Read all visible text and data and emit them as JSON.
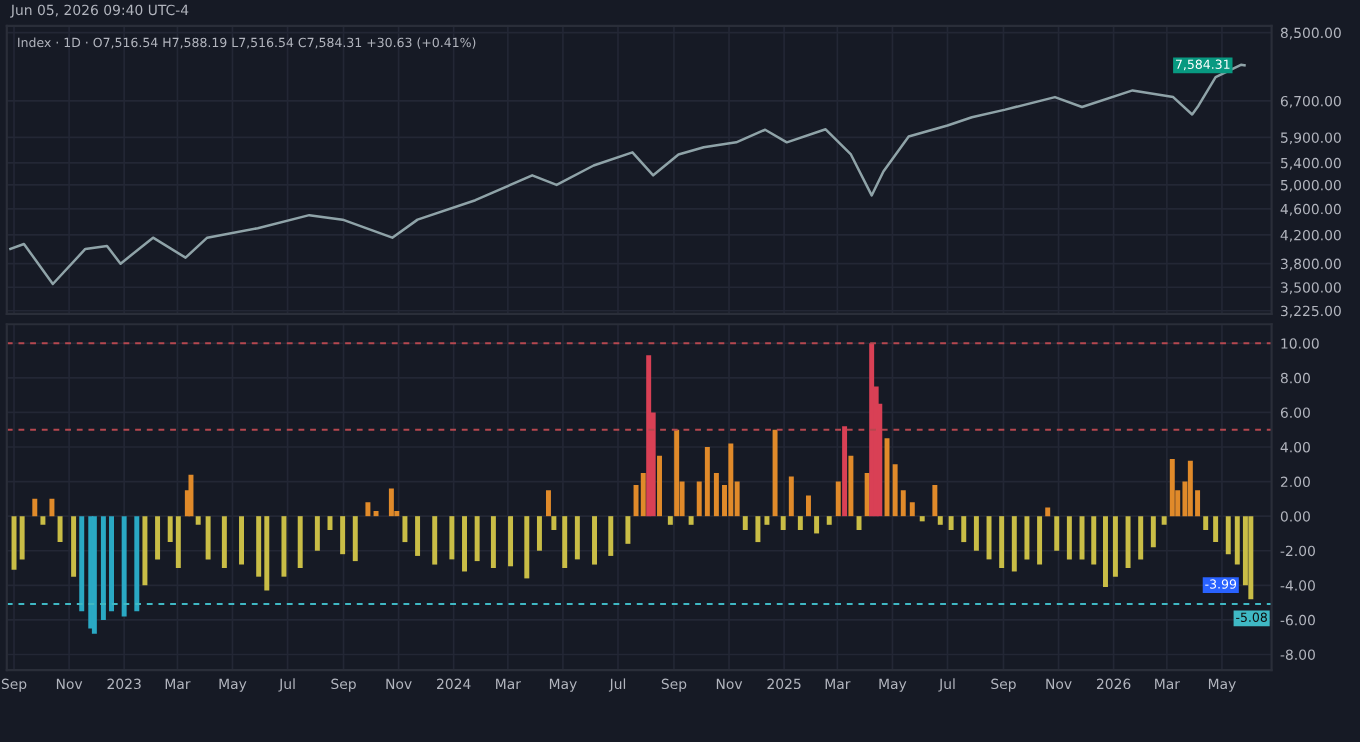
{
  "chart_data": [
    {
      "type": "line",
      "title": "Index · 1D · O7,516.54 H7,588.19 L7,516.54 C7,584.31 +30.63 (+0.41%)",
      "log": true,
      "grid": true,
      "tick_labels": "y",
      "annotations": [
        "Jun 05, 2026 09:40 UTC-4",
        {
          "text": "7,584.31",
          "x": "2026-05-26",
          "y": 7584.31
        }
      ],
      "xlim": [
        "2022-08-24",
        "2026-06-25"
      ],
      "ylim": [
        3190,
        8700
      ],
      "yticks": [
        {
          "value": 3225,
          "label": "3,225.00"
        },
        {
          "value": 3500,
          "label": "3,500.00"
        },
        {
          "value": 3800,
          "label": "3,800.00"
        },
        {
          "value": 4200,
          "label": "4,200.00"
        },
        {
          "value": 4600,
          "label": "4,600.00"
        },
        {
          "value": 5000,
          "label": "5,000.00"
        },
        {
          "value": 5400,
          "label": "5,400.00"
        },
        {
          "value": 5900,
          "label": "5,900.00"
        },
        {
          "value": 6700,
          "label": "6,700.00"
        },
        {
          "value": 8500,
          "label": "8,500.00"
        }
      ],
      "series": [
        {
          "color": "#8fa3a8",
          "x": [
            "2022-08-28",
            "2022-09-12",
            "2022-10-14",
            "2022-11-19",
            "2022-12-13",
            "2022-12-28",
            "2023-02-02",
            "2023-03-10",
            "2023-04-03",
            "2023-05-29",
            "2023-07-25",
            "2023-08-31",
            "2023-10-25",
            "2023-11-22",
            "2024-01-25",
            "2024-03-28",
            "2024-04-24",
            "2024-06-04",
            "2024-07-17",
            "2024-08-09",
            "2024-09-06",
            "2024-10-04",
            "2024-11-09",
            "2024-12-11",
            "2025-01-04",
            "2025-02-16",
            "2025-03-16",
            "2025-04-08",
            "2025-04-21",
            "2025-05-19",
            "2025-07-01",
            "2025-07-28",
            "2025-09-03",
            "2025-10-28",
            "2025-11-27",
            "2026-01-22",
            "2026-03-08",
            "2026-03-29",
            "2026-04-05",
            "2026-04-24",
            "2026-05-22",
            "2026-05-26"
          ],
          "values": [
            4000,
            4070,
            3540,
            4000,
            4040,
            3800,
            4160,
            3880,
            4160,
            4300,
            4500,
            4430,
            4160,
            4430,
            4740,
            5170,
            5000,
            5350,
            5600,
            5170,
            5560,
            5700,
            5800,
            6060,
            5800,
            6070,
            5560,
            4820,
            5240,
            5920,
            6150,
            6330,
            6500,
            6790,
            6560,
            6950,
            6790,
            6390,
            6590,
            7280,
            7600,
            7584.31
          ]
        }
      ]
    },
    {
      "type": "bar",
      "grid": true,
      "annotations": [
        {
          "text": "-3.99",
          "x": "2026-06-02",
          "y": -3.99
        }
      ],
      "xlim": [
        "2022-08-24",
        "2026-06-25"
      ],
      "xticks": [
        {
          "value": "2022-09-01",
          "label": "Sep"
        },
        {
          "value": "2022-11-01",
          "label": "Nov"
        },
        {
          "value": "2023-01-01",
          "label": "2023"
        },
        {
          "value": "2023-03-01",
          "label": "Mar"
        },
        {
          "value": "2023-05-01",
          "label": "May"
        },
        {
          "value": "2023-07-01",
          "label": "Jul"
        },
        {
          "value": "2023-09-01",
          "label": "Sep"
        },
        {
          "value": "2023-11-01",
          "label": "Nov"
        },
        {
          "value": "2024-01-01",
          "label": "2024"
        },
        {
          "value": "2024-03-01",
          "label": "Mar"
        },
        {
          "value": "2024-05-01",
          "label": "May"
        },
        {
          "value": "2024-07-01",
          "label": "Jul"
        },
        {
          "value": "2024-09-01",
          "label": "Sep"
        },
        {
          "value": "2024-11-01",
          "label": "Nov"
        },
        {
          "value": "2025-01-01",
          "label": "2025"
        },
        {
          "value": "2025-03-01",
          "label": "Mar"
        },
        {
          "value": "2025-05-01",
          "label": "May"
        },
        {
          "value": "2025-07-01",
          "label": "Jul"
        },
        {
          "value": "2025-09-01",
          "label": "Sep"
        },
        {
          "value": "2025-11-01",
          "label": "Nov"
        },
        {
          "value": "2026-01-01",
          "label": "2026"
        },
        {
          "value": "2026-03-01",
          "label": "Mar"
        },
        {
          "value": "2026-05-01",
          "label": "May"
        }
      ],
      "ylim": [
        -8.9,
        11.1
      ],
      "yticks": [
        {
          "value": 10,
          "label": "10.00"
        },
        {
          "value": 8,
          "label": "8.00"
        },
        {
          "value": 6,
          "label": "6.00"
        },
        {
          "value": 4,
          "label": "4.00"
        },
        {
          "value": 2,
          "label": "2.00"
        },
        {
          "value": 0,
          "label": "0.00"
        },
        {
          "value": -2,
          "label": "-2.00"
        },
        {
          "value": -4,
          "label": "-4.00"
        },
        {
          "value": -6,
          "label": "-6.00"
        },
        {
          "value": -8,
          "label": "-8.00"
        }
      ],
      "ref_lines": [
        {
          "axis": "y",
          "value": 10,
          "color": "#b5474f",
          "line_style": "dashed"
        },
        {
          "axis": "y",
          "value": 5,
          "color": "#b5474f",
          "line_style": "dashed"
        },
        {
          "axis": "y",
          "value": -5.08,
          "label": "-5.08",
          "color": "#3fb8c4",
          "line_style": "dashed"
        }
      ],
      "x": [
        "2022-09-01",
        "2022-09-10",
        "2022-09-24",
        "2022-10-03",
        "2022-10-13",
        "2022-10-22",
        "2022-11-06",
        "2022-11-15",
        "2022-11-25",
        "2022-11-29",
        "2022-12-09",
        "2022-12-18",
        "2023-01-01",
        "2023-01-15",
        "2023-01-24",
        "2023-02-07",
        "2023-02-21",
        "2023-03-02",
        "2023-03-12",
        "2023-03-16",
        "2023-03-24",
        "2023-04-04",
        "2023-04-22",
        "2023-05-11",
        "2023-05-30",
        "2023-06-08",
        "2023-06-27",
        "2023-07-15",
        "2023-08-03",
        "2023-08-17",
        "2023-08-31",
        "2023-09-14",
        "2023-09-28",
        "2023-10-07",
        "2023-10-24",
        "2023-10-30",
        "2023-11-08",
        "2023-11-22",
        "2023-12-11",
        "2023-12-30",
        "2024-01-13",
        "2024-01-27",
        "2024-02-14",
        "2024-03-04",
        "2024-03-22",
        "2024-04-05",
        "2024-04-15",
        "2024-04-21",
        "2024-05-03",
        "2024-05-17",
        "2024-06-05",
        "2024-06-23",
        "2024-07-12",
        "2024-07-21",
        "2024-07-29",
        "2024-08-04",
        "2024-08-09",
        "2024-08-16",
        "2024-08-28",
        "2024-09-04",
        "2024-09-10",
        "2024-09-20",
        "2024-09-29",
        "2024-10-08",
        "2024-10-18",
        "2024-10-27",
        "2024-11-03",
        "2024-11-10",
        "2024-11-19",
        "2024-12-03",
        "2024-12-13",
        "2024-12-22",
        "2024-12-31",
        "2025-01-09",
        "2025-01-19",
        "2025-01-28",
        "2025-02-06",
        "2025-02-20",
        "2025-03-02",
        "2025-03-09",
        "2025-03-16",
        "2025-03-25",
        "2025-04-03",
        "2025-04-08",
        "2025-04-13",
        "2025-04-17",
        "2025-04-25",
        "2025-05-04",
        "2025-05-13",
        "2025-05-23",
        "2025-06-03",
        "2025-06-17",
        "2025-06-23",
        "2025-07-05",
        "2025-07-19",
        "2025-08-02",
        "2025-08-16",
        "2025-08-30",
        "2025-09-13",
        "2025-09-27",
        "2025-10-11",
        "2025-10-20",
        "2025-10-30",
        "2025-11-13",
        "2025-11-27",
        "2025-12-10",
        "2025-12-23",
        "2026-01-03",
        "2026-01-17",
        "2026-01-31",
        "2026-02-14",
        "2026-02-26",
        "2026-03-07",
        "2026-03-13",
        "2026-03-21",
        "2026-03-27",
        "2026-04-04",
        "2026-04-13",
        "2026-04-24",
        "2026-05-08",
        "2026-05-18",
        "2026-05-27",
        "2026-06-02"
      ],
      "values": [
        -3.1,
        -2.5,
        1.0,
        -0.5,
        1.0,
        -1.5,
        -3.5,
        -5.5,
        -6.5,
        -6.8,
        -6.0,
        -5.5,
        -5.8,
        -5.5,
        -4.0,
        -2.5,
        -1.5,
        -3.0,
        1.5,
        2.4,
        -0.5,
        -2.5,
        -3.0,
        -2.8,
        -3.5,
        -4.3,
        -3.5,
        -3.0,
        -2.0,
        -0.8,
        -2.2,
        -2.6,
        0.8,
        0.3,
        1.6,
        0.3,
        -1.5,
        -2.3,
        -2.8,
        -2.5,
        -3.2,
        -2.6,
        -3.0,
        -2.9,
        -3.6,
        -2.0,
        1.5,
        -0.8,
        -3.0,
        -2.5,
        -2.8,
        -2.3,
        -1.6,
        1.8,
        2.5,
        9.3,
        6.0,
        3.5,
        -0.5,
        5.0,
        2.0,
        -0.5,
        2.0,
        4.0,
        2.5,
        1.8,
        4.2,
        2.0,
        -0.8,
        -1.5,
        -0.5,
        5.0,
        -0.8,
        2.3,
        -0.8,
        1.2,
        -1.0,
        -0.5,
        2.0,
        5.2,
        3.5,
        -0.8,
        2.5,
        10.0,
        7.5,
        6.5,
        4.5,
        3.0,
        1.5,
        0.8,
        -0.3,
        1.8,
        -0.5,
        -0.8,
        -1.5,
        -2.0,
        -2.5,
        -3.0,
        -3.2,
        -2.5,
        -2.8,
        0.5,
        -2.0,
        -2.5,
        -2.5,
        -2.8,
        -4.1,
        -3.5,
        -3.0,
        -2.5,
        -1.8,
        -0.5,
        3.3,
        1.5,
        2.0,
        3.2,
        1.5,
        -0.8,
        -1.5,
        -2.2,
        -2.8,
        -4.0,
        -4.8
      ],
      "colors": [
        "#c9bd46",
        "#c9bd46",
        "#e08a2a",
        "#c9bd46",
        "#e08a2a",
        "#c9bd46",
        "#c9bd46",
        "#2aa9c4",
        "#2aa9c4",
        "#2aa9c4",
        "#2aa9c4",
        "#2aa9c4",
        "#2aa9c4",
        "#2aa9c4",
        "#c9bd46",
        "#c9bd46",
        "#c9bd46",
        "#c9bd46",
        "#e08a2a",
        "#e08a2a",
        "#c9bd46",
        "#c9bd46",
        "#c9bd46",
        "#c9bd46",
        "#c9bd46",
        "#c9bd46",
        "#c9bd46",
        "#c9bd46",
        "#c9bd46",
        "#c9bd46",
        "#c9bd46",
        "#c9bd46",
        "#e08a2a",
        "#e08a2a",
        "#e08a2a",
        "#e08a2a",
        "#c9bd46",
        "#c9bd46",
        "#c9bd46",
        "#c9bd46",
        "#c9bd46",
        "#c9bd46",
        "#c9bd46",
        "#c9bd46",
        "#c9bd46",
        "#c9bd46",
        "#e08a2a",
        "#c9bd46",
        "#c9bd46",
        "#c9bd46",
        "#c9bd46",
        "#c9bd46",
        "#c9bd46",
        "#e08a2a",
        "#e08a2a",
        "#d94055",
        "#d94055",
        "#e08a2a",
        "#c9bd46",
        "#e08a2a",
        "#e08a2a",
        "#c9bd46",
        "#e08a2a",
        "#e08a2a",
        "#e08a2a",
        "#e08a2a",
        "#e08a2a",
        "#e08a2a",
        "#c9bd46",
        "#c9bd46",
        "#c9bd46",
        "#e08a2a",
        "#c9bd46",
        "#e08a2a",
        "#c9bd46",
        "#e08a2a",
        "#c9bd46",
        "#c9bd46",
        "#e08a2a",
        "#d94055",
        "#e08a2a",
        "#c9bd46",
        "#e08a2a",
        "#d94055",
        "#d94055",
        "#d94055",
        "#e08a2a",
        "#e08a2a",
        "#e08a2a",
        "#e08a2a",
        "#c9bd46",
        "#e08a2a",
        "#c9bd46",
        "#c9bd46",
        "#c9bd46",
        "#c9bd46",
        "#c9bd46",
        "#c9bd46",
        "#c9bd46",
        "#c9bd46",
        "#c9bd46",
        "#e08a2a",
        "#c9bd46",
        "#c9bd46",
        "#c9bd46",
        "#c9bd46",
        "#c9bd46",
        "#c9bd46",
        "#c9bd46",
        "#c9bd46",
        "#c9bd46",
        "#c9bd46",
        "#e08a2a",
        "#e08a2a",
        "#e08a2a",
        "#e08a2a",
        "#e08a2a",
        "#c9bd46",
        "#c9bd46",
        "#c9bd46",
        "#c9bd46",
        "#c9bd46",
        "#c9bd46"
      ]
    }
  ]
}
